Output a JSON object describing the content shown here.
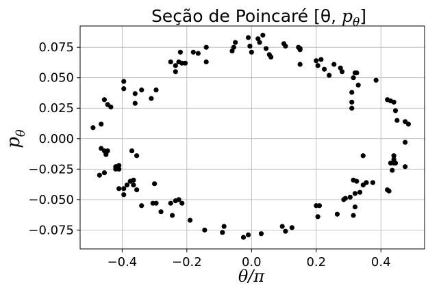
{
  "chart_data": {
    "type": "scatter",
    "title": "Seção de Poincaré [θ, ",
    "title_symbol": "p",
    "title_symbol_sub": "θ",
    "title_end": "]",
    "xlabel": "θ/π",
    "ylabel": "p",
    "ylabel_sub": "θ",
    "xlim": [
      -0.53,
      0.535
    ],
    "ylim": [
      -0.0905,
      0.0925
    ],
    "xticks": [
      -0.4,
      -0.2,
      0.0,
      0.2,
      0.4
    ],
    "xtick_labels": [
      "−0.4",
      "−0.2",
      "0.0",
      "0.2",
      "0.4"
    ],
    "yticks": [
      -0.075,
      -0.05,
      -0.025,
      0.0,
      0.025,
      0.05,
      0.075
    ],
    "ytick_labels": [
      "−0.075",
      "−0.050",
      "−0.025",
      "0.000",
      "0.025",
      "0.050",
      "0.075"
    ],
    "grid": true,
    "marker_color": "#000000",
    "grid_color": "#b0b0b0",
    "x": [
      -0.01,
      -0.005,
      0.0,
      0.02,
      0.025,
      0.035,
      0.045,
      0.055,
      0.06,
      0.1,
      0.105,
      0.145,
      0.15,
      -0.05,
      -0.055,
      -0.06,
      -0.14,
      -0.14,
      -0.165,
      -0.18,
      -0.205,
      -0.215,
      -0.22,
      -0.225,
      -0.235,
      -0.235,
      -0.25,
      -0.295,
      -0.31,
      -0.34,
      -0.36,
      -0.395,
      -0.395,
      -0.36,
      -0.445,
      -0.455,
      -0.435,
      -0.465,
      -0.49,
      -0.42,
      -0.455,
      -0.465,
      -0.45,
      -0.45,
      -0.445,
      -0.37,
      -0.355,
      -0.41,
      -0.41,
      -0.42,
      -0.455,
      -0.47,
      -0.365,
      -0.375,
      -0.365,
      -0.355,
      -0.385,
      -0.395,
      -0.41,
      -0.395,
      -0.3,
      -0.305,
      -0.295,
      -0.28,
      -0.34,
      -0.245,
      -0.235,
      -0.225,
      -0.215,
      -0.25,
      -0.19,
      -0.145,
      -0.09,
      -0.085,
      -0.025,
      -0.01,
      0.03,
      0.095,
      0.105,
      0.125,
      0.2,
      0.205,
      0.21,
      0.265,
      0.285,
      0.29,
      0.305,
      0.315,
      0.325,
      0.32,
      0.32,
      0.315,
      0.335,
      0.345,
      0.375,
      0.425,
      0.44,
      0.44,
      0.445,
      0.44,
      0.43,
      0.475,
      0.42,
      0.435,
      0.475,
      0.475,
      0.485,
      0.45,
      0.445,
      0.44,
      0.42,
      0.43,
      0.385,
      0.325,
      0.32,
      0.315,
      0.33,
      0.31,
      0.31,
      0.31,
      0.28,
      0.275,
      0.255,
      0.24,
      0.225,
      0.215,
      0.205,
      0.2,
      0.15,
      0.15,
      0.345,
      0.355
    ],
    "y": [
      0.083,
      0.076,
      0.071,
      0.082,
      0.079,
      0.085,
      0.074,
      0.069,
      0.067,
      0.078,
      0.076,
      0.075,
      0.073,
      0.079,
      0.075,
      0.072,
      0.075,
      0.063,
      0.07,
      0.071,
      0.062,
      0.062,
      0.071,
      0.063,
      0.06,
      0.055,
      0.063,
      0.04,
      0.033,
      0.04,
      0.029,
      0.041,
      0.047,
      0.037,
      0.028,
      0.032,
      0.026,
      0.012,
      0.009,
      -0.023,
      -0.01,
      -0.008,
      -0.012,
      -0.013,
      -0.01,
      -0.01,
      -0.014,
      -0.022,
      -0.025,
      -0.025,
      -0.028,
      -0.03,
      -0.034,
      -0.035,
      -0.038,
      -0.042,
      -0.038,
      -0.041,
      -0.041,
      -0.046,
      -0.037,
      -0.053,
      -0.053,
      -0.06,
      -0.055,
      -0.063,
      -0.051,
      -0.05,
      -0.053,
      -0.053,
      -0.067,
      -0.075,
      -0.077,
      -0.072,
      -0.081,
      -0.079,
      -0.078,
      -0.072,
      -0.076,
      -0.073,
      -0.055,
      -0.064,
      -0.055,
      -0.062,
      -0.05,
      -0.049,
      -0.048,
      -0.034,
      -0.035,
      -0.045,
      -0.056,
      -0.063,
      -0.044,
      -0.038,
      -0.036,
      -0.043,
      -0.014,
      -0.017,
      -0.02,
      -0.02,
      -0.02,
      -0.023,
      -0.042,
      -0.026,
      -0.003,
      0.014,
      0.012,
      0.015,
      0.023,
      0.03,
      0.032,
      0.031,
      0.048,
      0.054,
      0.054,
      0.05,
      0.044,
      0.038,
      0.03,
      0.025,
      0.055,
      0.058,
      0.061,
      0.052,
      0.057,
      0.065,
      0.06,
      0.064,
      0.074,
      0.061,
      -0.014,
      -0.036
    ]
  }
}
